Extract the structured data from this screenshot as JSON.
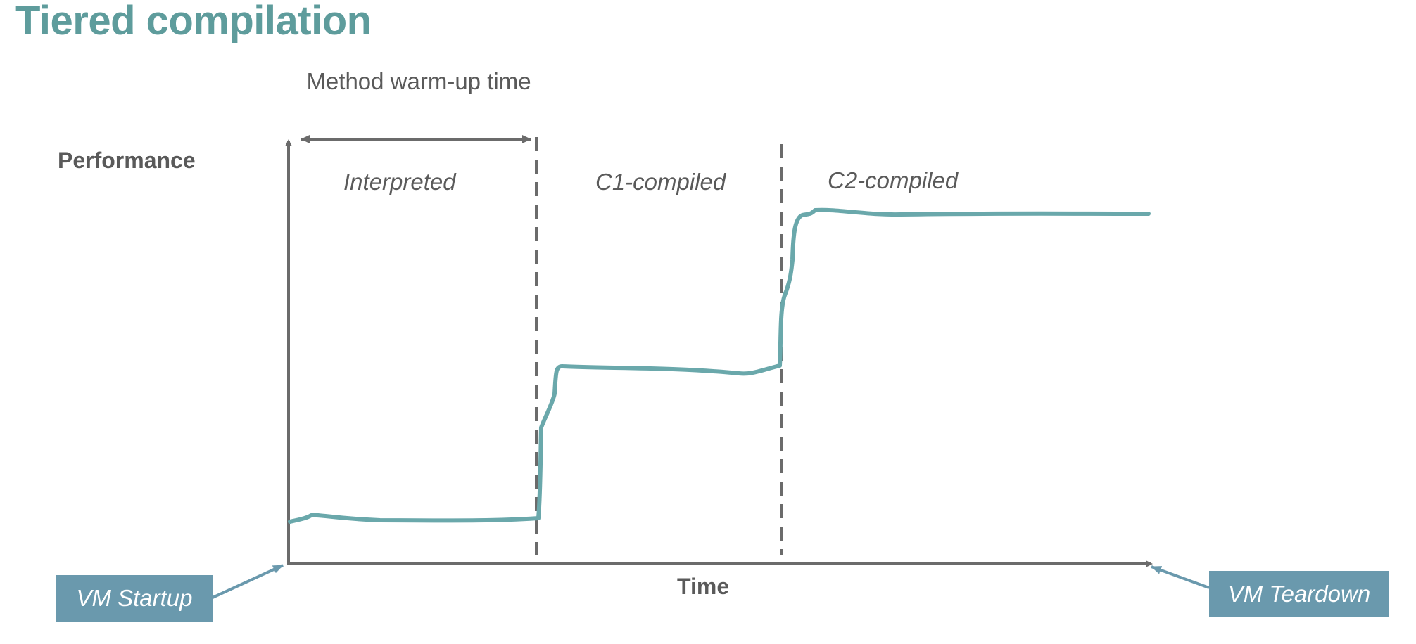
{
  "title": "Tiered compilation",
  "annotations": {
    "warmup": "Method warm-up time",
    "ylabel": "Performance",
    "xlabel": "Time"
  },
  "phases": [
    "Interpreted",
    "C1-compiled",
    "C2-compiled"
  ],
  "callouts": {
    "start": "VM Startup",
    "end": "VM Teardown"
  },
  "colors": {
    "title": "#5e9c9c",
    "curve": "#6aa8ab",
    "axis": "#6b6b6b",
    "callout_bg": "#6a99ad",
    "text": "#5a5a5a"
  }
}
